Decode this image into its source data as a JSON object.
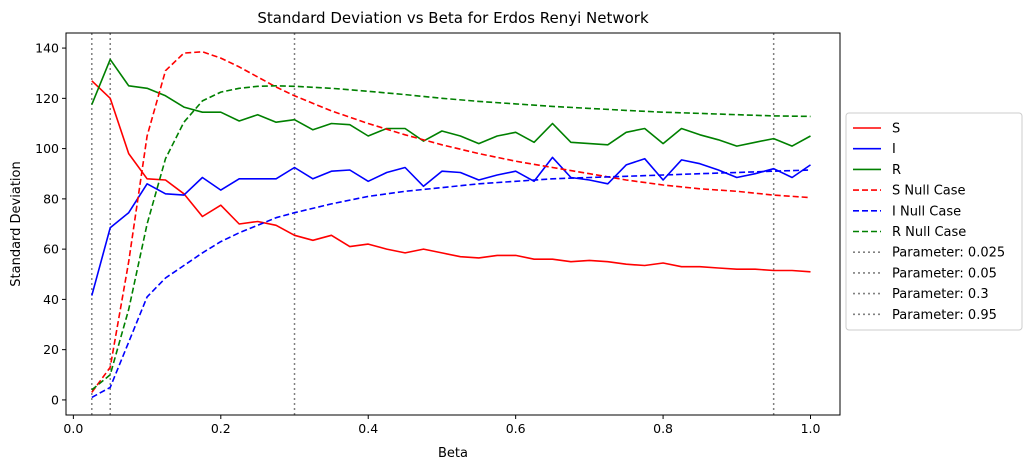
{
  "chart_data": {
    "type": "line",
    "title": "Standard Deviation vs Beta for Erdos Renyi Network",
    "xlabel": "Beta",
    "ylabel": "Standard Deviation",
    "xlim": [
      -0.01,
      1.04
    ],
    "ylim": [
      -6,
      146
    ],
    "xticks": [
      0.0,
      0.2,
      0.4,
      0.6,
      0.8,
      1.0
    ],
    "xtick_labels": [
      "0.0",
      "0.2",
      "0.4",
      "0.6",
      "0.8",
      "1.0"
    ],
    "yticks": [
      0,
      20,
      40,
      60,
      80,
      100,
      120,
      140
    ],
    "ytick_labels": [
      "0",
      "20",
      "40",
      "60",
      "80",
      "100",
      "120",
      "140"
    ],
    "grid": false,
    "legend_position": "outside-right",
    "series": [
      {
        "name": "S",
        "color": "#ff0000",
        "style": "solid",
        "x": [
          0.025,
          0.05,
          0.075,
          0.1,
          0.125,
          0.15,
          0.175,
          0.2,
          0.225,
          0.25,
          0.275,
          0.3,
          0.325,
          0.35,
          0.375,
          0.4,
          0.425,
          0.45,
          0.475,
          0.5,
          0.525,
          0.55,
          0.575,
          0.6,
          0.625,
          0.65,
          0.675,
          0.7,
          0.725,
          0.75,
          0.775,
          0.8,
          0.825,
          0.85,
          0.875,
          0.9,
          0.925,
          0.95,
          0.975,
          1.0
        ],
        "y": [
          127,
          120,
          98,
          88,
          87.5,
          82,
          73,
          77.5,
          70,
          71,
          69.5,
          65.5,
          63.5,
          65.5,
          61,
          62,
          60,
          58.5,
          60,
          58.5,
          57,
          56.5,
          57.5,
          57.5,
          56,
          56,
          55,
          55.5,
          55,
          54,
          53.5,
          54.5,
          53,
          53,
          52.5,
          52,
          52,
          51.5,
          51.5,
          51
        ]
      },
      {
        "name": "I",
        "color": "#0000ff",
        "style": "solid",
        "x": [
          0.025,
          0.05,
          0.075,
          0.1,
          0.125,
          0.15,
          0.175,
          0.2,
          0.225,
          0.25,
          0.275,
          0.3,
          0.325,
          0.35,
          0.375,
          0.4,
          0.425,
          0.45,
          0.475,
          0.5,
          0.525,
          0.55,
          0.575,
          0.6,
          0.625,
          0.65,
          0.675,
          0.7,
          0.725,
          0.75,
          0.775,
          0.8,
          0.825,
          0.85,
          0.875,
          0.9,
          0.925,
          0.95,
          0.975,
          1.0
        ],
        "y": [
          41.5,
          68.5,
          74.5,
          86,
          82,
          81.5,
          88.5,
          83.5,
          88,
          88,
          88,
          92.5,
          88,
          91,
          91.5,
          87,
          90.5,
          92.5,
          85,
          91,
          90.5,
          87.5,
          89.5,
          91,
          87,
          96.5,
          88.5,
          87.5,
          86,
          93.5,
          96,
          87.5,
          95.5,
          94,
          91.5,
          88.5,
          90,
          92,
          88.5,
          93.5
        ]
      },
      {
        "name": "R",
        "color": "#008000",
        "style": "solid",
        "x": [
          0.025,
          0.05,
          0.075,
          0.1,
          0.125,
          0.15,
          0.175,
          0.2,
          0.225,
          0.25,
          0.275,
          0.3,
          0.325,
          0.35,
          0.375,
          0.4,
          0.425,
          0.45,
          0.475,
          0.5,
          0.525,
          0.55,
          0.575,
          0.6,
          0.625,
          0.65,
          0.675,
          0.7,
          0.725,
          0.75,
          0.775,
          0.8,
          0.825,
          0.85,
          0.875,
          0.9,
          0.925,
          0.95,
          0.975,
          1.0
        ],
        "y": [
          117.5,
          135.5,
          125,
          124,
          121,
          116.5,
          114.5,
          114.5,
          111,
          113.5,
          110.5,
          111.5,
          107.5,
          110,
          109.5,
          105,
          108,
          108,
          103,
          107,
          105,
          102,
          105,
          106.5,
          102.5,
          110,
          102.5,
          102,
          101.5,
          106.5,
          108,
          102,
          108,
          105.5,
          103.5,
          101,
          102.5,
          104,
          101,
          105
        ]
      },
      {
        "name": "S Null Case",
        "color": "#ff0000",
        "style": "dashed",
        "x": [
          0.025,
          0.05,
          0.075,
          0.1,
          0.125,
          0.15,
          0.175,
          0.2,
          0.225,
          0.25,
          0.275,
          0.3,
          0.35,
          0.4,
          0.45,
          0.5,
          0.55,
          0.6,
          0.65,
          0.7,
          0.75,
          0.8,
          0.85,
          0.9,
          0.95,
          1.0
        ],
        "y": [
          3,
          13,
          55,
          105,
          131,
          138,
          138.5,
          136,
          132.5,
          128.5,
          124.5,
          121,
          115,
          110,
          105.5,
          101.5,
          98,
          95,
          92.5,
          90,
          87.5,
          85.5,
          84,
          83,
          81.5,
          80.5
        ]
      },
      {
        "name": "I Null Case",
        "color": "#0000ff",
        "style": "dashed",
        "x": [
          0.025,
          0.05,
          0.075,
          0.1,
          0.125,
          0.15,
          0.175,
          0.2,
          0.225,
          0.25,
          0.275,
          0.3,
          0.35,
          0.4,
          0.45,
          0.5,
          0.55,
          0.6,
          0.65,
          0.7,
          0.75,
          0.8,
          0.85,
          0.9,
          0.95,
          1.0
        ],
        "y": [
          1,
          5,
          23,
          41,
          48.5,
          53.5,
          58.5,
          63,
          66.5,
          69.5,
          72.5,
          74.5,
          78,
          81,
          83,
          84.5,
          86,
          87,
          88,
          88.5,
          89,
          89.5,
          90,
          90.5,
          91,
          91.5
        ]
      },
      {
        "name": "R Null Case",
        "color": "#008000",
        "style": "dashed",
        "x": [
          0.025,
          0.05,
          0.075,
          0.1,
          0.125,
          0.15,
          0.175,
          0.2,
          0.225,
          0.25,
          0.275,
          0.3,
          0.35,
          0.4,
          0.45,
          0.5,
          0.55,
          0.6,
          0.65,
          0.7,
          0.75,
          0.8,
          0.85,
          0.9,
          0.95,
          1.0
        ],
        "y": [
          4,
          10,
          36,
          70,
          96,
          110.5,
          119,
          122.5,
          124,
          124.8,
          125,
          124.8,
          124,
          122.8,
          121.5,
          120,
          118.8,
          117.8,
          116.8,
          116,
          115.2,
          114.5,
          114,
          113.5,
          113,
          112.8
        ]
      }
    ],
    "vlines": [
      {
        "name": "Parameter: 0.025",
        "x": 0.025,
        "color": "#808080",
        "style": "dotted"
      },
      {
        "name": "Parameter: 0.05",
        "x": 0.05,
        "color": "#808080",
        "style": "dotted"
      },
      {
        "name": "Parameter: 0.3",
        "x": 0.3,
        "color": "#808080",
        "style": "dotted"
      },
      {
        "name": "Parameter: 0.95",
        "x": 0.95,
        "color": "#808080",
        "style": "dotted"
      }
    ]
  }
}
